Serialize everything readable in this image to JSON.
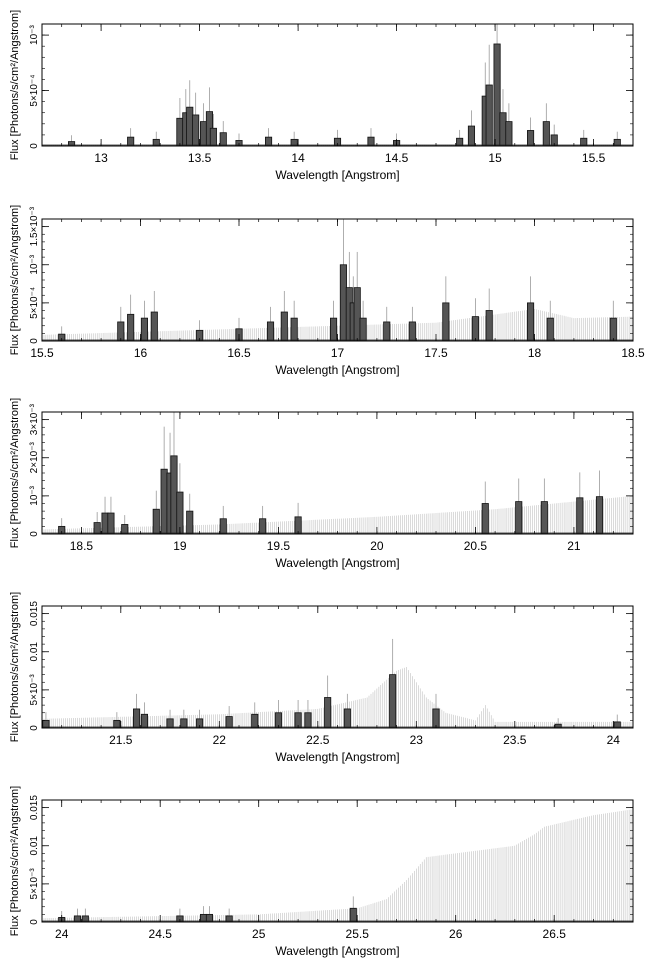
{
  "figure": {
    "panel_count": 5
  },
  "chart_data": [
    {
      "type": "step",
      "xlabel": "Wavelength [Angstrom]",
      "ylabel": "Flux [Photons/s/cm²/Angstrom]",
      "xlim": [
        12.7,
        15.7
      ],
      "ylim": [
        0,
        0.0011
      ],
      "xticks": [
        {
          "v": 13,
          "label": "13"
        },
        {
          "v": 13.5,
          "label": "13.5"
        },
        {
          "v": 14,
          "label": "14"
        },
        {
          "v": 14.5,
          "label": "14.5"
        },
        {
          "v": 15,
          "label": "15"
        },
        {
          "v": 15.5,
          "label": "15.5"
        }
      ],
      "yticks": [
        {
          "v": 0,
          "label": "0"
        },
        {
          "v": 0.0005,
          "label": "5×10⁻⁴"
        },
        {
          "v": 0.001,
          "label": "10⁻³"
        }
      ],
      "background": [
        [
          12.7,
          1e-05
        ],
        [
          15.7,
          1e-05
        ]
      ],
      "features": [
        {
          "c": 12.85,
          "h": 4e-05
        },
        {
          "c": 13.15,
          "h": 8e-05
        },
        {
          "c": 13.28,
          "h": 6e-05
        },
        {
          "c": 13.4,
          "h": 0.00025
        },
        {
          "c": 13.43,
          "h": 0.0003
        },
        {
          "c": 13.45,
          "h": 0.00035
        },
        {
          "c": 13.48,
          "h": 0.00028
        },
        {
          "c": 13.52,
          "h": 0.00022
        },
        {
          "c": 13.55,
          "h": 0.00031
        },
        {
          "c": 13.57,
          "h": 0.00016
        },
        {
          "c": 13.62,
          "h": 0.00012
        },
        {
          "c": 13.7,
          "h": 5e-05
        },
        {
          "c": 13.85,
          "h": 8e-05
        },
        {
          "c": 13.98,
          "h": 6e-05
        },
        {
          "c": 14.2,
          "h": 7e-05
        },
        {
          "c": 14.37,
          "h": 8e-05
        },
        {
          "c": 14.5,
          "h": 5e-05
        },
        {
          "c": 14.82,
          "h": 7e-05
        },
        {
          "c": 14.88,
          "h": 0.00018
        },
        {
          "c": 14.95,
          "h": 0.00045
        },
        {
          "c": 14.97,
          "h": 0.00055
        },
        {
          "c": 15.01,
          "h": 0.00092
        },
        {
          "c": 15.04,
          "h": 0.0003
        },
        {
          "c": 15.07,
          "h": 0.00022
        },
        {
          "c": 15.18,
          "h": 0.00014
        },
        {
          "c": 15.26,
          "h": 0.00022
        },
        {
          "c": 15.3,
          "h": 0.0001
        },
        {
          "c": 15.45,
          "h": 7e-05
        },
        {
          "c": 15.62,
          "h": 6e-05
        }
      ]
    },
    {
      "type": "step",
      "xlabel": "Wavelength [Angstrom]",
      "ylabel": "Flux [Photons/s/cm²/Angstrom]",
      "xlim": [
        15.5,
        18.5
      ],
      "ylim": [
        0,
        0.0016
      ],
      "xticks": [
        {
          "v": 15.5,
          "label": "15.5"
        },
        {
          "v": 16,
          "label": "16"
        },
        {
          "v": 16.5,
          "label": "16.5"
        },
        {
          "v": 17,
          "label": "17"
        },
        {
          "v": 17.5,
          "label": "17.5"
        },
        {
          "v": 18,
          "label": "18"
        },
        {
          "v": 18.5,
          "label": "18.5"
        }
      ],
      "yticks": [
        {
          "v": 0,
          "label": "0"
        },
        {
          "v": 0.0005,
          "label": "5×10⁻⁴"
        },
        {
          "v": 0.001,
          "label": "10⁻³"
        },
        {
          "v": 0.0015,
          "label": "1.5×10⁻³"
        }
      ],
      "background": [
        [
          15.5,
          8e-05
        ],
        [
          16.5,
          0.00016
        ],
        [
          17.5,
          0.00024
        ],
        [
          18.0,
          0.00042
        ],
        [
          18.2,
          0.0003
        ],
        [
          18.5,
          0.00032
        ]
      ],
      "features": [
        {
          "c": 15.6,
          "h": 9e-05
        },
        {
          "c": 15.9,
          "h": 0.00025
        },
        {
          "c": 15.95,
          "h": 0.00035
        },
        {
          "c": 16.02,
          "h": 0.0003
        },
        {
          "c": 16.07,
          "h": 0.00038
        },
        {
          "c": 16.3,
          "h": 0.00014
        },
        {
          "c": 16.5,
          "h": 0.00016
        },
        {
          "c": 16.66,
          "h": 0.00025
        },
        {
          "c": 16.73,
          "h": 0.00038
        },
        {
          "c": 16.78,
          "h": 0.0003
        },
        {
          "c": 16.98,
          "h": 0.0003
        },
        {
          "c": 17.03,
          "h": 0.001
        },
        {
          "c": 17.06,
          "h": 0.0007
        },
        {
          "c": 17.08,
          "h": 0.0005
        },
        {
          "c": 17.1,
          "h": 0.0007
        },
        {
          "c": 17.13,
          "h": 0.0003
        },
        {
          "c": 17.25,
          "h": 0.00025
        },
        {
          "c": 17.38,
          "h": 0.00025
        },
        {
          "c": 17.55,
          "h": 0.0005
        },
        {
          "c": 17.7,
          "h": 0.00032
        },
        {
          "c": 17.77,
          "h": 0.0004
        },
        {
          "c": 17.98,
          "h": 0.0005
        },
        {
          "c": 18.08,
          "h": 0.0003
        },
        {
          "c": 18.4,
          "h": 0.0003
        }
      ]
    },
    {
      "type": "step",
      "xlabel": "Wavelength [Angstrom]",
      "ylabel": "Flux [Photons/s/cm²/Angstrom]",
      "xlim": [
        18.3,
        21.3
      ],
      "ylim": [
        0,
        0.0032
      ],
      "xticks": [
        {
          "v": 18.5,
          "label": "18.5"
        },
        {
          "v": 19,
          "label": "19"
        },
        {
          "v": 19.5,
          "label": "19.5"
        },
        {
          "v": 20,
          "label": "20"
        },
        {
          "v": 20.5,
          "label": "20.5"
        },
        {
          "v": 21,
          "label": "21"
        }
      ],
      "yticks": [
        {
          "v": 0,
          "label": "0"
        },
        {
          "v": 0.001,
          "label": "10⁻³"
        },
        {
          "v": 0.002,
          "label": "2×10⁻³"
        },
        {
          "v": 0.003,
          "label": "3×10⁻³"
        }
      ],
      "background": [
        [
          18.3,
          0.00012
        ],
        [
          19.2,
          0.00025
        ],
        [
          20.0,
          0.00045
        ],
        [
          20.6,
          0.00065
        ],
        [
          21.3,
          0.001
        ]
      ],
      "features": [
        {
          "c": 18.4,
          "h": 0.0002
        },
        {
          "c": 18.58,
          "h": 0.0003
        },
        {
          "c": 18.62,
          "h": 0.00055
        },
        {
          "c": 18.65,
          "h": 0.00055
        },
        {
          "c": 18.72,
          "h": 0.00025
        },
        {
          "c": 18.88,
          "h": 0.00065
        },
        {
          "c": 18.92,
          "h": 0.0017
        },
        {
          "c": 18.95,
          "h": 0.0016
        },
        {
          "c": 18.97,
          "h": 0.00205
        },
        {
          "c": 19.0,
          "h": 0.0011
        },
        {
          "c": 19.05,
          "h": 0.0006
        },
        {
          "c": 19.22,
          "h": 0.0004
        },
        {
          "c": 19.42,
          "h": 0.0004
        },
        {
          "c": 19.6,
          "h": 0.00045
        },
        {
          "c": 20.55,
          "h": 0.0008
        },
        {
          "c": 20.72,
          "h": 0.00085
        },
        {
          "c": 20.85,
          "h": 0.00085
        },
        {
          "c": 21.03,
          "h": 0.00095
        },
        {
          "c": 21.13,
          "h": 0.00098
        }
      ]
    },
    {
      "type": "step",
      "xlabel": "Wavelength [Angstrom]",
      "ylabel": "Flux [Photons/s/cm²/Angstrom]",
      "xlim": [
        21.1,
        24.1
      ],
      "ylim": [
        0,
        0.016
      ],
      "xticks": [
        {
          "v": 21.5,
          "label": "21.5"
        },
        {
          "v": 22,
          "label": "22"
        },
        {
          "v": 22.5,
          "label": "22.5"
        },
        {
          "v": 23,
          "label": "23"
        },
        {
          "v": 23.5,
          "label": "23.5"
        },
        {
          "v": 24,
          "label": "24"
        }
      ],
      "yticks": [
        {
          "v": 0,
          "label": "0"
        },
        {
          "v": 0.005,
          "label": "5×10⁻³"
        },
        {
          "v": 0.01,
          "label": "0.01"
        },
        {
          "v": 0.015,
          "label": "0.015"
        }
      ],
      "background": [
        [
          21.1,
          0.0012
        ],
        [
          22.0,
          0.0018
        ],
        [
          22.5,
          0.0025
        ],
        [
          22.75,
          0.004
        ],
        [
          22.9,
          0.0075
        ],
        [
          22.95,
          0.008
        ],
        [
          23.05,
          0.004
        ],
        [
          23.15,
          0.002
        ],
        [
          23.3,
          0.001
        ],
        [
          23.35,
          0.003
        ],
        [
          23.4,
          0.0008
        ],
        [
          24.1,
          0.0008
        ]
      ],
      "features": [
        {
          "c": 21.12,
          "h": 0.001
        },
        {
          "c": 21.48,
          "h": 0.001
        },
        {
          "c": 21.58,
          "h": 0.0025
        },
        {
          "c": 21.62,
          "h": 0.0018
        },
        {
          "c": 21.75,
          "h": 0.0012
        },
        {
          "c": 21.82,
          "h": 0.0012
        },
        {
          "c": 21.9,
          "h": 0.0012
        },
        {
          "c": 22.05,
          "h": 0.0015
        },
        {
          "c": 22.18,
          "h": 0.0018
        },
        {
          "c": 22.3,
          "h": 0.002
        },
        {
          "c": 22.4,
          "h": 0.002
        },
        {
          "c": 22.45,
          "h": 0.002
        },
        {
          "c": 22.55,
          "h": 0.004
        },
        {
          "c": 22.65,
          "h": 0.0025
        },
        {
          "c": 22.88,
          "h": 0.007
        },
        {
          "c": 23.1,
          "h": 0.0025
        },
        {
          "c": 23.72,
          "h": 0.0005
        },
        {
          "c": 24.02,
          "h": 0.0008
        }
      ]
    },
    {
      "type": "step",
      "xlabel": "Wavelength [Angstrom]",
      "ylabel": "Flux [Photons/s/cm²/Angstrom]",
      "xlim": [
        23.9,
        26.9
      ],
      "ylim": [
        0,
        0.016
      ],
      "xticks": [
        {
          "v": 24,
          "label": "24"
        },
        {
          "v": 24.5,
          "label": "24.5"
        },
        {
          "v": 25,
          "label": "25"
        },
        {
          "v": 25.5,
          "label": "25.5"
        },
        {
          "v": 26,
          "label": "26"
        },
        {
          "v": 26.5,
          "label": "26.5"
        }
      ],
      "yticks": [
        {
          "v": 0,
          "label": "0"
        },
        {
          "v": 0.005,
          "label": "5×10⁻³"
        },
        {
          "v": 0.01,
          "label": "0.01"
        },
        {
          "v": 0.015,
          "label": "0.015"
        }
      ],
      "background": [
        [
          23.9,
          0.0005
        ],
        [
          25.0,
          0.001
        ],
        [
          25.5,
          0.0018
        ],
        [
          25.65,
          0.003
        ],
        [
          25.75,
          0.0055
        ],
        [
          25.85,
          0.0085
        ],
        [
          26.0,
          0.009
        ],
        [
          26.3,
          0.01
        ],
        [
          26.4,
          0.0115
        ],
        [
          26.45,
          0.0125
        ],
        [
          26.7,
          0.014
        ],
        [
          26.9,
          0.0148
        ]
      ],
      "features": [
        {
          "c": 24.0,
          "h": 0.0006
        },
        {
          "c": 24.08,
          "h": 0.0008
        },
        {
          "c": 24.12,
          "h": 0.0008
        },
        {
          "c": 24.6,
          "h": 0.0008
        },
        {
          "c": 24.72,
          "h": 0.001
        },
        {
          "c": 24.75,
          "h": 0.001
        },
        {
          "c": 24.85,
          "h": 0.0008
        },
        {
          "c": 25.48,
          "h": 0.0018
        }
      ]
    }
  ]
}
